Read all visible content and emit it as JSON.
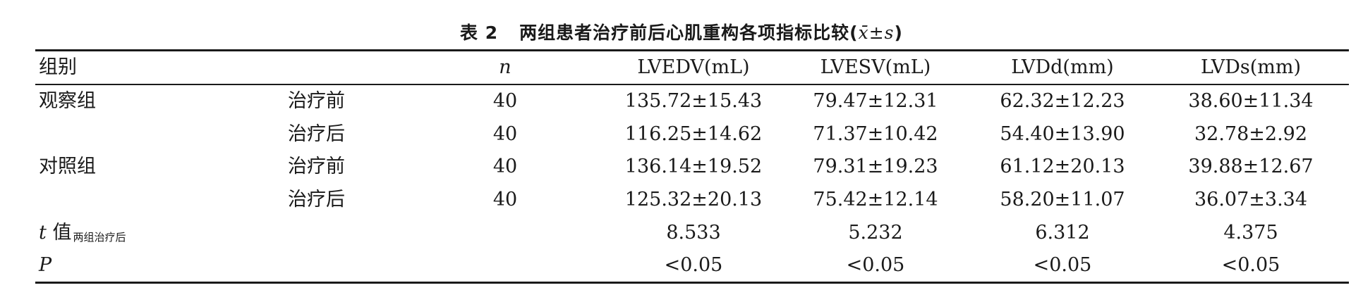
{
  "table": {
    "caption_label": "表 2",
    "caption_title": "两组患者治疗前后心肌重构各项指标比较",
    "caption_stat": "x̄±s",
    "header": {
      "group": "组别",
      "n": "n",
      "lvedv": "LVEDV(mL)",
      "lvesv": "LVESV(mL)",
      "lvdd": "LVDd(mm)",
      "lvds": "LVDs(mm)"
    },
    "rows": [
      {
        "group": "观察组",
        "phase": "治疗前",
        "n": "40",
        "lvedv": "135.72±15.43",
        "lvesv": "79.47±12.31",
        "lvdd": "62.32±12.23",
        "lvds": "38.60±11.34"
      },
      {
        "group": "",
        "phase": "治疗后",
        "n": "40",
        "lvedv": "116.25±14.62",
        "lvesv": "71.37±10.42",
        "lvdd": "54.40±13.90",
        "lvds": "32.78±2.92"
      },
      {
        "group": "对照组",
        "phase": "治疗前",
        "n": "40",
        "lvedv": "136.14±19.52",
        "lvesv": "79.31±19.23",
        "lvdd": "61.12±20.13",
        "lvds": "39.88±12.67"
      },
      {
        "group": "",
        "phase": "治疗后",
        "n": "40",
        "lvedv": "125.32±20.13",
        "lvesv": "75.42±12.14",
        "lvdd": "58.20±11.07",
        "lvds": "36.07±3.34"
      }
    ],
    "t_row": {
      "label_symbol": "t",
      "label_text": "值",
      "label_sub": "两组治疗后",
      "lvedv": "8.533",
      "lvesv": "5.232",
      "lvdd": "6.312",
      "lvds": "4.375"
    },
    "p_row": {
      "label": "P",
      "lvedv": "<0.05",
      "lvesv": "<0.05",
      "lvdd": "<0.05",
      "lvds": "<0.05"
    }
  }
}
